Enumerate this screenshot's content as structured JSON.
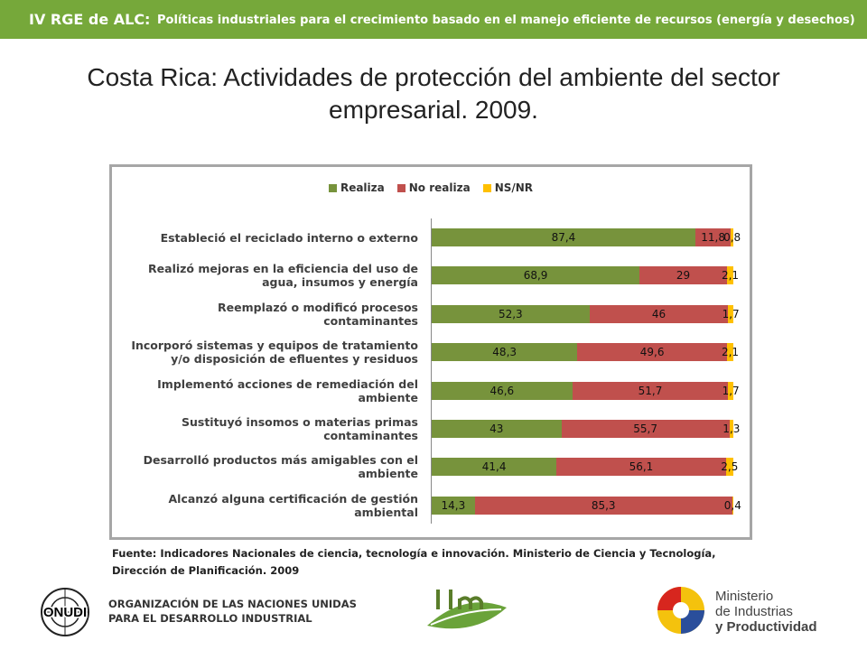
{
  "header": {
    "title_bold": "IV RGE de ALC:",
    "title_rest": "Políticas industriales para el crecimiento basado en el manejo eficiente de recursos  (energía y desechos)"
  },
  "chart_data": {
    "type": "bar",
    "orientation": "horizontal",
    "stacked": true,
    "title": "Costa Rica: Actividades de protección del ambiente del sector empresarial. 2009.",
    "legend": "top",
    "xlim": [
      0,
      100
    ],
    "categories": [
      "Estableció el reciclado interno o externo",
      "Realizó  mejoras en la eficiencia del uso de agua, insumos y energía",
      "Reemplazó o modificó procesos contaminantes",
      "Incorporó sistemas y equipos de tratamiento y/o disposición de efluentes y residuos",
      "Implementó acciones de remediación del ambiente",
      "Sustituyó insomos o materias primas contaminantes",
      "Desarrolló productos más amigables con el ambiente",
      "Alcanzó alguna certificación de gestión ambiental"
    ],
    "series": [
      {
        "name": "Realiza",
        "color": "#77933c",
        "values": [
          87.4,
          68.9,
          52.3,
          48.3,
          46.6,
          43,
          41.4,
          14.3
        ],
        "value_labels": [
          "87,4",
          "68,9",
          "52,3",
          "48,3",
          "46,6",
          "43",
          "41,4",
          "14,3"
        ]
      },
      {
        "name": "No realiza",
        "color": "#c0504d",
        "values": [
          11.8,
          29,
          46,
          49.6,
          51.7,
          55.7,
          56.1,
          85.3
        ],
        "value_labels": [
          "11,8",
          "29",
          "46",
          "49,6",
          "51,7",
          "55,7",
          "56,1",
          "85,3"
        ]
      },
      {
        "name": "NS/NR",
        "color": "#ffc000",
        "values": [
          0.8,
          2.1,
          1.7,
          2.1,
          1.7,
          1.3,
          2.5,
          0.4
        ],
        "value_labels": [
          "0,8",
          "2,1",
          "1,7",
          "2,1",
          "1,7",
          "1,3",
          "2,5",
          "0,4"
        ]
      }
    ]
  },
  "source": "Fuente: Indicadores Nacionales de ciencia, tecnología e innovación. Ministerio de Ciencia y Tecnología, Dirección de Planificación. 2009",
  "footer": {
    "onudi": "ONUDI",
    "unido_line1": "ORGANIZACIÓN DE LAS NACIONES UNIDAS",
    "unido_line2": "PARA EL DESARROLLO INDUSTRIAL",
    "ministry_line1": "Ministerio",
    "ministry_line2": "de Industrias",
    "ministry_line3": "y Productividad"
  }
}
